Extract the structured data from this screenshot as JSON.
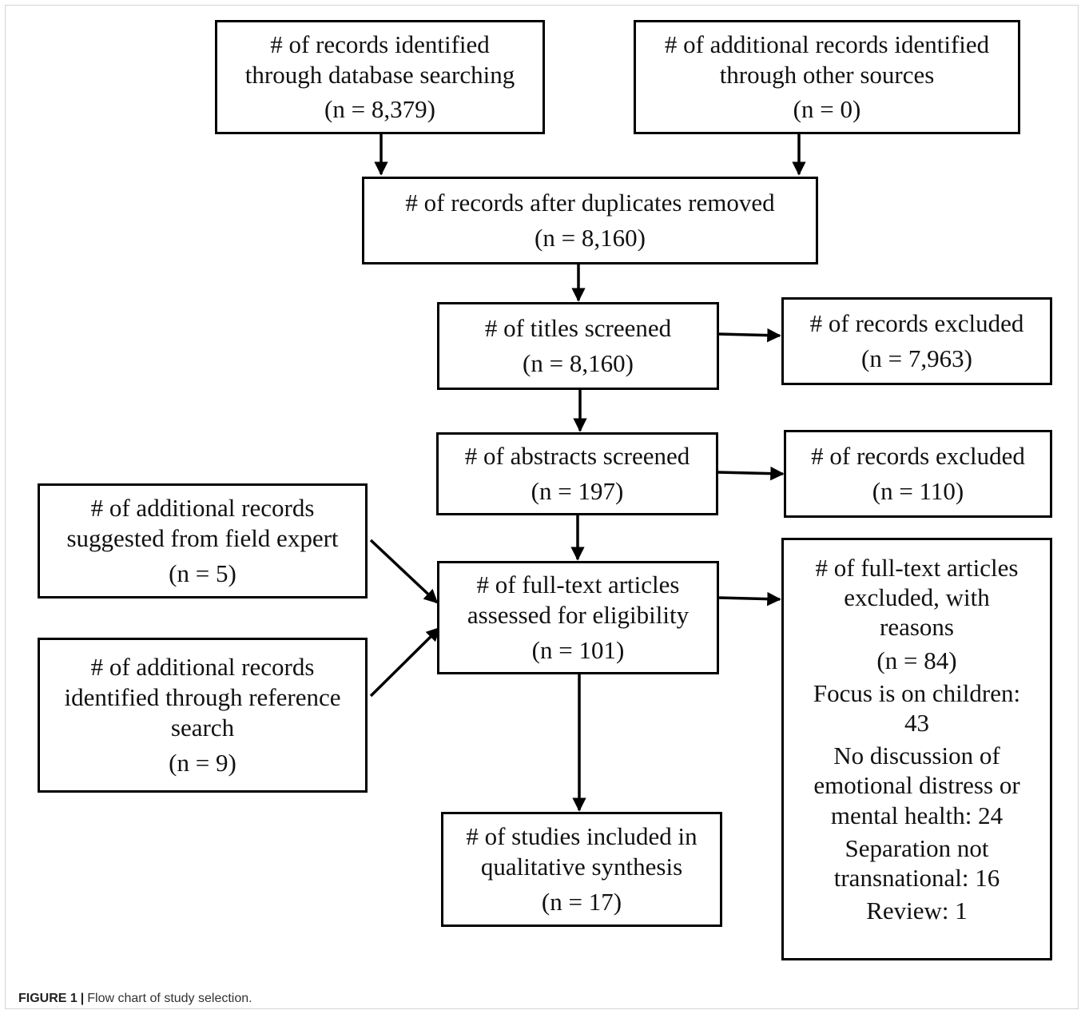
{
  "boxes": {
    "database": {
      "lines": [
        "# of records identified",
        "through database searching"
      ],
      "count": "(n = 8,379)"
    },
    "other_sources": {
      "lines": [
        "# of additional records identified",
        "through other sources"
      ],
      "count": "(n = 0)"
    },
    "duplicates_removed": {
      "lines": [
        "# of records after duplicates removed"
      ],
      "count": "(n = 8,160)"
    },
    "titles_screened": {
      "lines": [
        "# of titles screened"
      ],
      "count": "(n = 8,160)"
    },
    "titles_excluded": {
      "lines": [
        "# of records excluded"
      ],
      "count": "(n = 7,963)"
    },
    "abstracts_screened": {
      "lines": [
        "# of abstracts screened"
      ],
      "count": "(n = 197)"
    },
    "abstracts_excluded": {
      "lines": [
        "# of records excluded"
      ],
      "count": "(n = 110)"
    },
    "field_expert": {
      "lines": [
        "# of additional records",
        "suggested from field expert"
      ],
      "count": "(n = 5)"
    },
    "reference_search": {
      "lines": [
        "# of additional records",
        "identified through reference",
        "search"
      ],
      "count": "(n = 9)"
    },
    "fulltext_assessed": {
      "lines": [
        "# of full-text articles",
        "assessed for eligibility"
      ],
      "count": "(n = 101)"
    },
    "included": {
      "lines": [
        "# of studies included in",
        "qualitative synthesis"
      ],
      "count": "(n = 17)"
    },
    "fulltext_excluded": {
      "lines": [
        "# of full-text articles",
        "excluded, with",
        "reasons"
      ],
      "count": "(n = 84)",
      "reasons": [
        [
          "Focus is on children:",
          "43"
        ],
        [
          "No discussion of",
          "emotional distress or",
          "mental health: 24"
        ],
        [
          "Separation not",
          "transnational: 16"
        ],
        [
          "Review: 1"
        ]
      ]
    }
  },
  "caption": {
    "label": "FIGURE 1",
    "separator": "|",
    "text": "Flow chart of study selection."
  }
}
